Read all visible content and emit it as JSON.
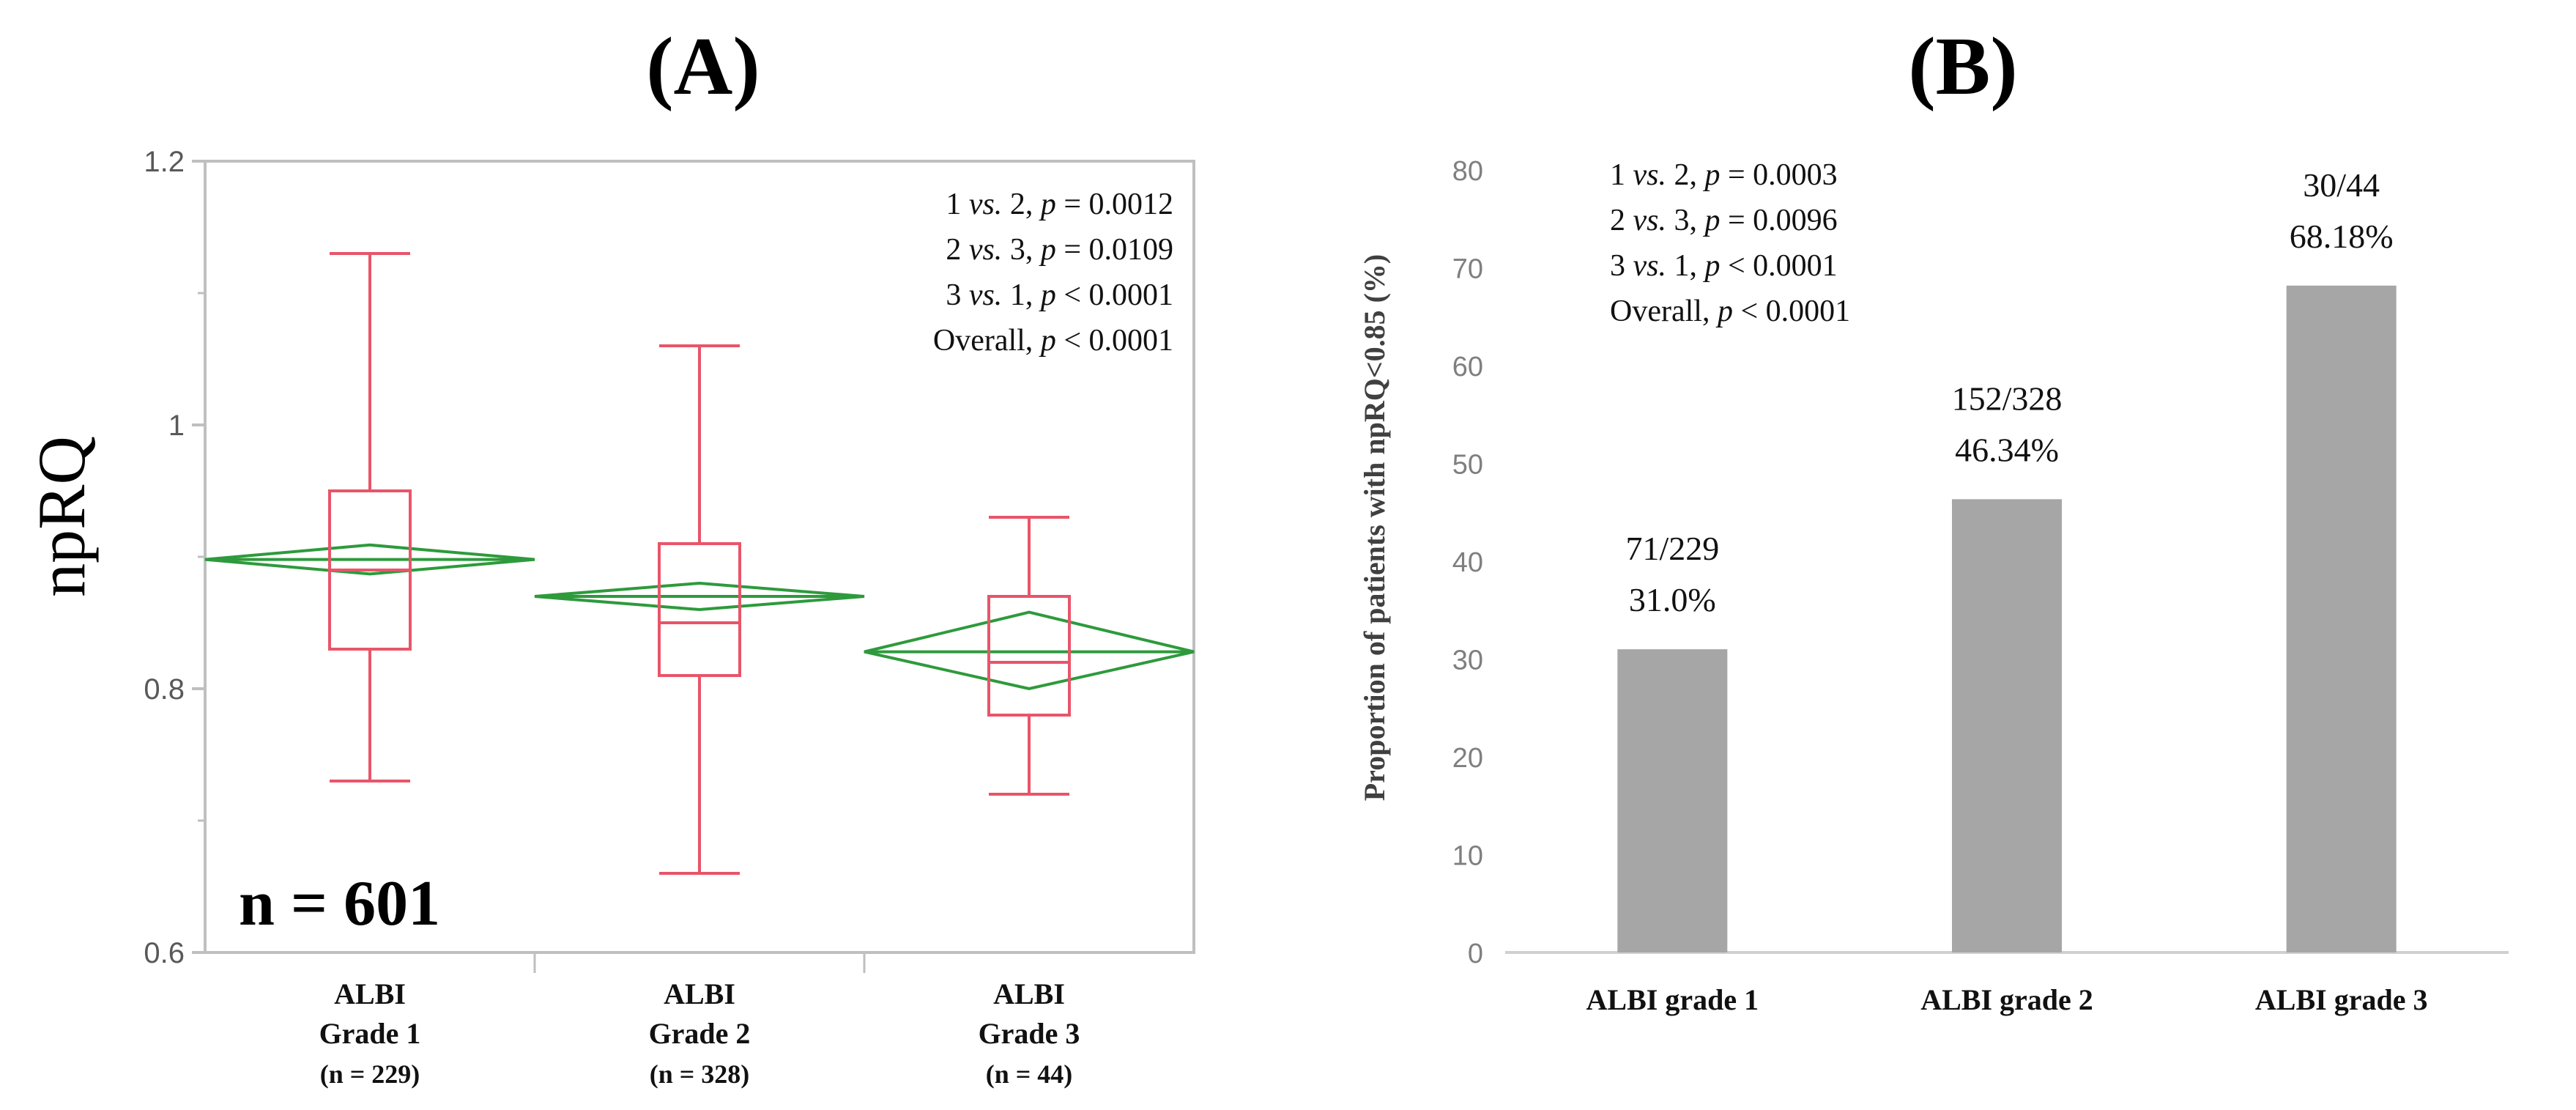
{
  "colors": {
    "box": "#e8556a",
    "diamond": "#2e9a3c",
    "bar": "#a6a6a6",
    "axis_a": "#bfbfbf",
    "axis_b": "#d0d0d0",
    "tick_text": "#595959",
    "text": "#111111"
  },
  "chart_data": [
    {
      "type": "box",
      "panel_label": "(A)",
      "ylabel": "npRQ",
      "ylim": [
        0.6,
        1.2
      ],
      "yticks": [
        "0.6",
        "0.8",
        "1",
        "1.2"
      ],
      "ytick_values": [
        0.6,
        0.8,
        1.0,
        1.2
      ],
      "sample_label": "n = 601",
      "annotations": [
        {
          "pre": "1 ",
          "vs": "vs.",
          "mid": " 2, ",
          "p": "p",
          "post": " = 0.0012"
        },
        {
          "pre": "2 ",
          "vs": "vs.",
          "mid": " 3, ",
          "p": "p",
          "post": " = 0.0109"
        },
        {
          "pre": "3 ",
          "vs": "vs.",
          "mid": " 1, ",
          "p": "p",
          "post": " < 0.0001"
        },
        {
          "pre": "Overall, ",
          "vs": "",
          "mid": "",
          "p": "p",
          "post": " < 0.0001"
        }
      ],
      "groups": [
        {
          "label1": "ALBI",
          "label2": "Grade 1",
          "label3": "(n = 229)",
          "whisker_low": 0.73,
          "q1": 0.83,
          "median": 0.89,
          "q3": 0.95,
          "whisker_high": 1.13,
          "mean": 0.898,
          "ci_low": 0.887,
          "ci_high": 0.909
        },
        {
          "label1": "ALBI",
          "label2": "Grade 2",
          "label3": "(n = 328)",
          "whisker_low": 0.66,
          "q1": 0.81,
          "median": 0.85,
          "q3": 0.91,
          "whisker_high": 1.06,
          "mean": 0.87,
          "ci_low": 0.86,
          "ci_high": 0.88
        },
        {
          "label1": "ALBI",
          "label2": "Grade 3",
          "label3": "(n = 44)",
          "whisker_low": 0.72,
          "q1": 0.78,
          "median": 0.82,
          "q3": 0.87,
          "whisker_high": 0.93,
          "mean": 0.828,
          "ci_low": 0.8,
          "ci_high": 0.858
        }
      ]
    },
    {
      "type": "bar",
      "panel_label": "(B)",
      "ylabel": "Proportion of patients with npRQ<0.85 (%)",
      "ylim": [
        0,
        80
      ],
      "yticks": [
        "0",
        "10",
        "20",
        "30",
        "40",
        "50",
        "60",
        "70",
        "80"
      ],
      "ytick_values": [
        0,
        10,
        20,
        30,
        40,
        50,
        60,
        70,
        80
      ],
      "annotations": [
        {
          "pre": "1 ",
          "vs": "vs.",
          "mid": " 2, ",
          "p": "p",
          "post": " = 0.0003"
        },
        {
          "pre": "2 ",
          "vs": "vs.",
          "mid": " 3, ",
          "p": "p",
          "post": " = 0.0096"
        },
        {
          "pre": "3 ",
          "vs": "vs.",
          "mid": " 1, ",
          "p": "p",
          "post": " < 0.0001"
        },
        {
          "pre": "Overall, ",
          "vs": "",
          "mid": "",
          "p": "p",
          "post": " < 0.0001"
        }
      ],
      "categories": [
        "ALBI grade 1",
        "ALBI grade 2",
        "ALBI grade 3"
      ],
      "values": [
        31.0,
        46.34,
        68.18
      ],
      "count_labels": [
        "71/229",
        "152/328",
        "30/44"
      ],
      "percent_labels": [
        "31.0%",
        "46.34%",
        "68.18%"
      ]
    }
  ]
}
